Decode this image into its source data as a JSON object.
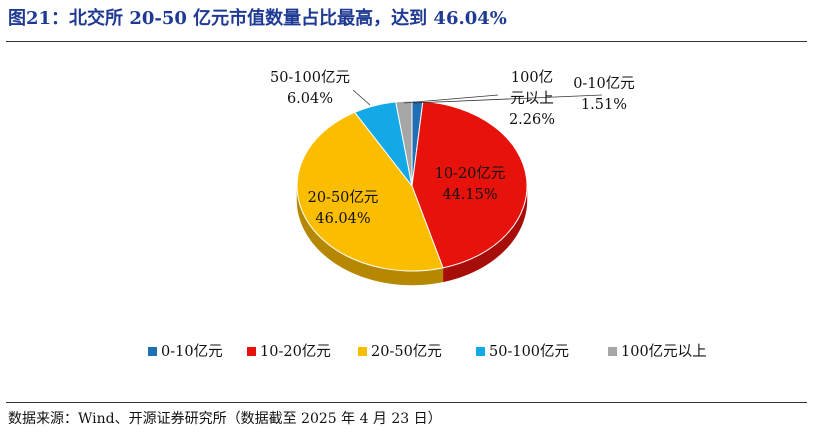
{
  "title": "图21：北交所 20-50 亿元市值数量占比最高，达到 46.04%",
  "source": "数据来源：Wind、开源证券研究所（数据截至 2025 年 4 月 23 日）",
  "chart_data": {
    "type": "pie",
    "style": "3d",
    "legend_position": "bottom",
    "slices": [
      {
        "label": "0-10亿元",
        "value": 1.51,
        "value_label": "1.51%",
        "color": "#1f6fb5"
      },
      {
        "label": "10-20亿元",
        "value": 44.15,
        "value_label": "44.15%",
        "color": "#e8120c"
      },
      {
        "label": "20-50亿元",
        "value": 46.04,
        "value_label": "46.04%",
        "color": "#fbbd00"
      },
      {
        "label": "50-100亿元",
        "value": 6.04,
        "value_label": "6.04%",
        "color": "#12a9e6"
      },
      {
        "label": "100亿元以上",
        "value": 2.26,
        "value_label": "2.26%",
        "color": "#a6a6a6"
      }
    ]
  }
}
